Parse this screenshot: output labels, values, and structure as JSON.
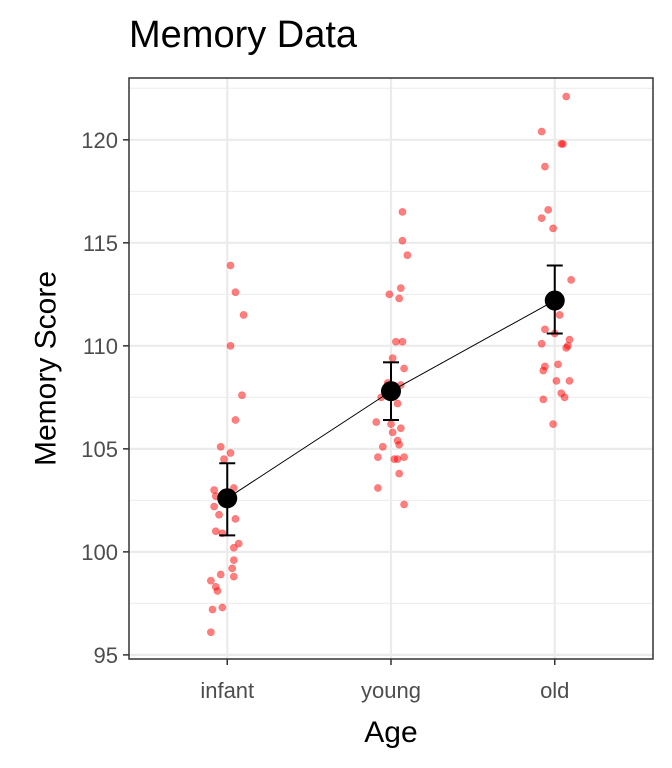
{
  "chart_data": {
    "type": "scatter",
    "title": "Memory Data",
    "xlabel": "Age",
    "ylabel": "Memory Score",
    "categories": [
      "infant",
      "young",
      "old"
    ],
    "ylim": [
      94.8,
      123.0
    ],
    "yticks": [
      95,
      100,
      105,
      110,
      115,
      120
    ],
    "grid": true,
    "colors": {
      "points": "#ff0000",
      "mean": "#000000",
      "grid": "#ebebeb",
      "panel_border": "#333333"
    },
    "points": [
      [
        {
          "x": 0.02,
          "y": 113.9
        },
        {
          "x": 0.05,
          "y": 112.6
        },
        {
          "x": 0.1,
          "y": 111.5
        },
        {
          "x": 0.02,
          "y": 110.0
        },
        {
          "x": 0.09,
          "y": 107.6
        },
        {
          "x": 0.05,
          "y": 106.4
        },
        {
          "x": -0.04,
          "y": 105.1
        },
        {
          "x": 0.02,
          "y": 104.8
        },
        {
          "x": -0.02,
          "y": 104.5
        },
        {
          "x": -0.08,
          "y": 103.0
        },
        {
          "x": 0.04,
          "y": 103.1
        },
        {
          "x": -0.07,
          "y": 102.7
        },
        {
          "x": -0.08,
          "y": 102.2
        },
        {
          "x": -0.05,
          "y": 101.8
        },
        {
          "x": 0.05,
          "y": 101.6
        },
        {
          "x": -0.07,
          "y": 101.0
        },
        {
          "x": -0.03,
          "y": 100.9
        },
        {
          "x": 0.07,
          "y": 100.4
        },
        {
          "x": 0.04,
          "y": 100.2
        },
        {
          "x": 0.04,
          "y": 99.6
        },
        {
          "x": 0.03,
          "y": 99.2
        },
        {
          "x": -0.04,
          "y": 98.9
        },
        {
          "x": 0.04,
          "y": 98.8
        },
        {
          "x": -0.1,
          "y": 98.6
        },
        {
          "x": -0.07,
          "y": 98.3
        },
        {
          "x": -0.06,
          "y": 98.1
        },
        {
          "x": -0.03,
          "y": 97.3
        },
        {
          "x": -0.09,
          "y": 97.2
        },
        {
          "x": -0.1,
          "y": 96.1
        }
      ],
      [
        {
          "x": 0.07,
          "y": 116.5
        },
        {
          "x": 0.07,
          "y": 115.1
        },
        {
          "x": 0.1,
          "y": 114.4
        },
        {
          "x": 0.06,
          "y": 112.8
        },
        {
          "x": -0.01,
          "y": 112.5
        },
        {
          "x": 0.05,
          "y": 112.3
        },
        {
          "x": 0.03,
          "y": 110.2
        },
        {
          "x": 0.07,
          "y": 110.2
        },
        {
          "x": 0.01,
          "y": 109.4
        },
        {
          "x": 0.08,
          "y": 108.9
        },
        {
          "x": -0.02,
          "y": 108.2
        },
        {
          "x": 0.06,
          "y": 108.1
        },
        {
          "x": -0.02,
          "y": 107.9
        },
        {
          "x": -0.06,
          "y": 107.5
        },
        {
          "x": 0.04,
          "y": 107.2
        },
        {
          "x": -0.09,
          "y": 106.3
        },
        {
          "x": 0.0,
          "y": 106.2
        },
        {
          "x": 0.06,
          "y": 106.0
        },
        {
          "x": 0.01,
          "y": 105.8
        },
        {
          "x": 0.04,
          "y": 105.4
        },
        {
          "x": 0.05,
          "y": 105.2
        },
        {
          "x": -0.05,
          "y": 105.1
        },
        {
          "x": 0.08,
          "y": 104.6
        },
        {
          "x": -0.08,
          "y": 104.6
        },
        {
          "x": 0.02,
          "y": 104.5
        },
        {
          "x": 0.04,
          "y": 104.5
        },
        {
          "x": 0.05,
          "y": 103.8
        },
        {
          "x": -0.08,
          "y": 103.1
        },
        {
          "x": 0.08,
          "y": 102.3
        }
      ],
      [
        {
          "x": 0.07,
          "y": 122.1
        },
        {
          "x": -0.08,
          "y": 120.4
        },
        {
          "x": 0.04,
          "y": 119.8
        },
        {
          "x": 0.05,
          "y": 119.8
        },
        {
          "x": -0.06,
          "y": 118.7
        },
        {
          "x": -0.04,
          "y": 116.6
        },
        {
          "x": -0.08,
          "y": 116.2
        },
        {
          "x": -0.01,
          "y": 115.7
        },
        {
          "x": 0.1,
          "y": 113.2
        },
        {
          "x": 0.0,
          "y": 112.5
        },
        {
          "x": 0.03,
          "y": 111.5
        },
        {
          "x": -0.06,
          "y": 110.8
        },
        {
          "x": 0.0,
          "y": 110.6
        },
        {
          "x": 0.09,
          "y": 110.3
        },
        {
          "x": -0.08,
          "y": 110.1
        },
        {
          "x": 0.08,
          "y": 110.0
        },
        {
          "x": 0.07,
          "y": 109.9
        },
        {
          "x": 0.02,
          "y": 109.1
        },
        {
          "x": -0.06,
          "y": 109.0
        },
        {
          "x": -0.07,
          "y": 108.8
        },
        {
          "x": 0.01,
          "y": 108.3
        },
        {
          "x": 0.09,
          "y": 108.3
        },
        {
          "x": 0.04,
          "y": 107.7
        },
        {
          "x": 0.06,
          "y": 107.5
        },
        {
          "x": -0.07,
          "y": 107.4
        },
        {
          "x": -0.01,
          "y": 106.2
        }
      ]
    ],
    "means": [
      102.6,
      107.8,
      112.2
    ],
    "errors": [
      {
        "low": 100.8,
        "high": 104.3
      },
      {
        "low": 106.4,
        "high": 109.2
      },
      {
        "low": 110.6,
        "high": 113.9
      }
    ]
  }
}
